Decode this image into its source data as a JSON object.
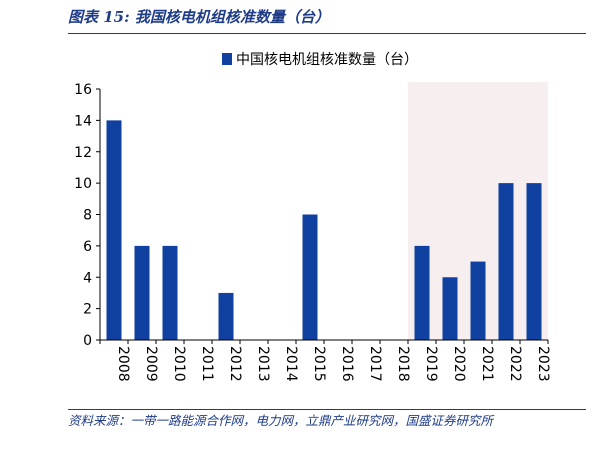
{
  "header": {
    "figure_title": "图表 15:  我国核电机组核准数量（台）"
  },
  "footer": {
    "source": "资料来源：一带一路能源合作网，电力网，立鼎产业研究网，国盛证券研究所"
  },
  "colors": {
    "bar": "#1040a0",
    "highlight_band": "#f7efef",
    "title_blue": "#1f3c88"
  },
  "chart_data": {
    "type": "bar",
    "title": "",
    "legend": {
      "entries": [
        "中国核电机组核准数量（台）"
      ],
      "position": "top-center"
    },
    "categories": [
      "2008",
      "2009",
      "2010",
      "2011",
      "2012",
      "2013",
      "2014",
      "2015",
      "2016",
      "2017",
      "2018",
      "2019",
      "2020",
      "2021",
      "2022",
      "2023"
    ],
    "series": [
      {
        "name": "中国核电机组核准数量（台）",
        "values": [
          14,
          6,
          6,
          0,
          3,
          0,
          0,
          8,
          0,
          0,
          0,
          6,
          4,
          5,
          10,
          10
        ]
      }
    ],
    "ylim": [
      0,
      16
    ],
    "yticks": [
      0,
      2,
      4,
      6,
      8,
      10,
      12,
      14,
      16
    ],
    "xlabel": "",
    "ylabel": "",
    "highlight_range": [
      "2019",
      "2023"
    ],
    "grid": false
  }
}
